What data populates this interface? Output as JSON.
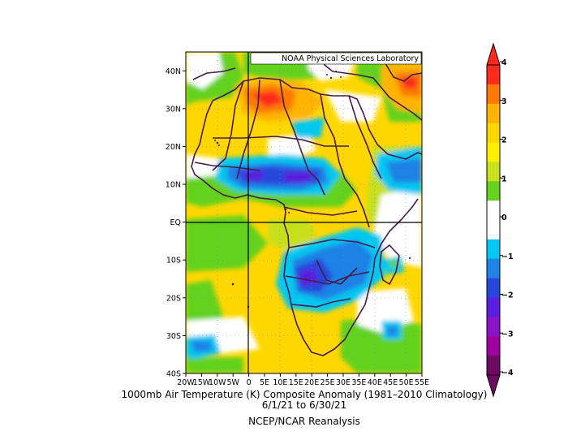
{
  "map": {
    "credit": "NOAA Physical Sciences Laboratory",
    "lat_labels": [
      "40N",
      "30N",
      "20N",
      "10N",
      "EQ",
      "10S",
      "20S",
      "30S",
      "40S"
    ],
    "lon_labels": [
      "20W",
      "15W",
      "10W",
      "5W",
      "0",
      "5E",
      "10E",
      "15E",
      "20E",
      "25E",
      "30E",
      "35E",
      "40E",
      "45E",
      "50E",
      "55E"
    ],
    "lat_range": [
      -40,
      45
    ],
    "lon_range": [
      -20,
      55
    ]
  },
  "colorbar": {
    "tick_labels": [
      "4",
      "3",
      "2",
      "1",
      "0",
      "−1",
      "−2",
      "−3",
      "−4"
    ],
    "colors": [
      "#ff2a1e",
      "#ff7a00",
      "#ffb400",
      "#ffd700",
      "#fff000",
      "#c8e01e",
      "#64d21e",
      "#ffffff",
      "#ffffff",
      "#00c8f0",
      "#1e82e6",
      "#2846dc",
      "#5a1edc",
      "#8c14c8",
      "#a000a0",
      "#6e0a64"
    ]
  },
  "caption": {
    "line1": "1000mb Air Temperature (K) Composite Anomaly (1981–2010 Climatology)",
    "line2": "6/1/21  to 6/30/21",
    "line3": "NCEP/NCAR Reanalysis"
  }
}
